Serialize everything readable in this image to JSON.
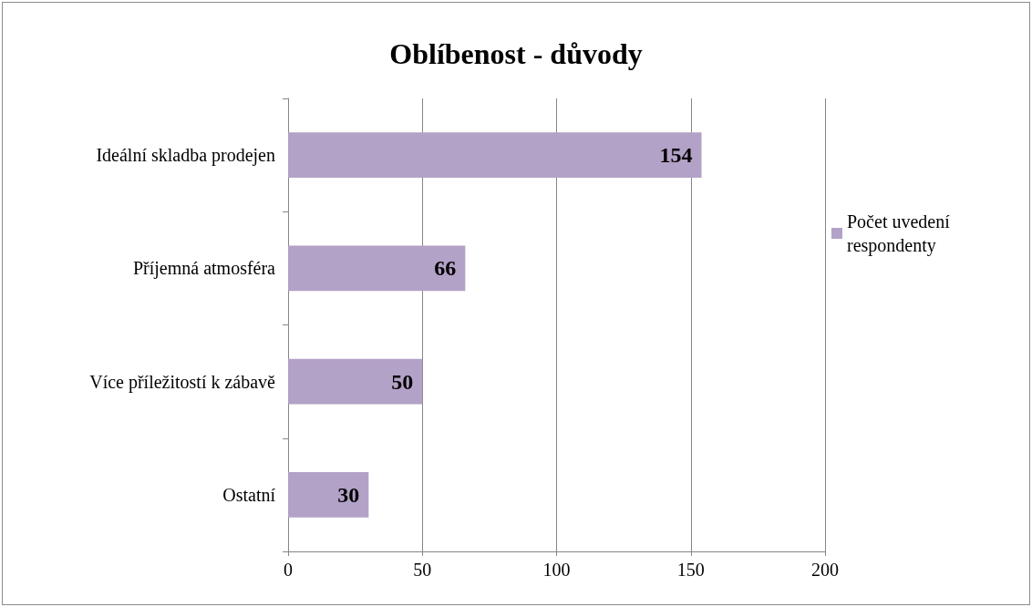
{
  "chart_data": {
    "type": "bar",
    "orientation": "horizontal",
    "title": "Oblíbenost - důvody",
    "categories": [
      "Ideální skladba prodejen",
      "Příjemná atmosféra",
      "Více příležitostí k zábavě",
      "Ostatní"
    ],
    "series": [
      {
        "name": "Počet uvedení respondenty",
        "color": "#b3a2c7",
        "values": [
          154,
          66,
          50,
          30
        ]
      }
    ],
    "xlim": [
      0,
      200
    ],
    "xticks": [
      0,
      50,
      100,
      150,
      200
    ],
    "grid": "x",
    "legend": "right",
    "data_labels": true
  }
}
